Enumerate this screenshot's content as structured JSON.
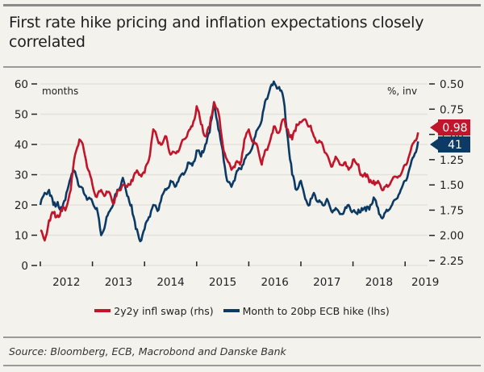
{
  "title": "First rate hike pricing and inflation expectations closely correlated",
  "source": "Source: Bloomberg, ECB, Macrobond and Danske Bank",
  "colors": {
    "red": "#c0152a",
    "blue": "#0c3a64",
    "grid": "#e4e1da",
    "axis": "#222222"
  },
  "chart_data": {
    "type": "line",
    "title": "First rate hike pricing and inflation expectations closely correlated",
    "xlabel": "",
    "left_axis": {
      "label": "months",
      "range": [
        0,
        60
      ],
      "ticks": [
        "0",
        "10",
        "20",
        "30",
        "40",
        "50",
        "60"
      ],
      "tick_values": [
        0,
        10,
        20,
        30,
        40,
        50,
        60
      ]
    },
    "right_axis": {
      "label": "%, inv",
      "inverted": true,
      "range": [
        0.5,
        2.25
      ],
      "ticks": [
        "0.50",
        "0.75",
        "1.00",
        "1.25",
        "1.50",
        "1.75",
        "2.00",
        "2.25"
      ],
      "tick_values": [
        0.5,
        0.75,
        1.0,
        1.25,
        1.5,
        1.75,
        2.0,
        2.25
      ]
    },
    "x_tick_labels": [
      "2012",
      "2013",
      "2014",
      "2015",
      "2016",
      "2017",
      "2018",
      "2019"
    ],
    "x_range": [
      2012.0,
      2019.45
    ],
    "grid": true,
    "legend_position": "bottom",
    "series": [
      {
        "name": "2y2y infl swap (rhs)",
        "axis": "right",
        "color": "#c0152a",
        "end_label": "0.98",
        "x_start": 2012.0,
        "x_step_months": 1,
        "values": [
          1.95,
          2.05,
          1.85,
          1.78,
          1.8,
          1.75,
          1.72,
          1.55,
          1.2,
          1.05,
          1.15,
          1.35,
          1.5,
          1.62,
          1.55,
          1.6,
          1.58,
          1.68,
          1.55,
          1.5,
          1.52,
          1.45,
          1.38,
          1.4,
          1.38,
          1.25,
          0.95,
          1.05,
          1.1,
          1.02,
          1.2,
          1.18,
          1.15,
          1.05,
          0.98,
          0.92,
          0.72,
          0.9,
          1.02,
          0.92,
          0.68,
          0.78,
          1.1,
          1.25,
          1.35,
          1.28,
          1.3,
          1.05,
          0.95,
          1.08,
          1.12,
          1.3,
          1.15,
          1.05,
          0.92,
          0.98,
          0.85,
          0.95,
          1.05,
          0.9,
          0.88,
          0.85,
          0.92,
          1.02,
          1.08,
          1.1,
          1.2,
          1.32,
          1.22,
          1.3,
          1.28,
          1.35,
          1.25,
          1.3,
          1.4,
          1.42,
          1.45,
          1.5,
          1.48,
          1.55,
          1.52,
          1.45,
          1.42,
          1.4,
          1.3,
          1.2,
          1.08,
          0.98
        ]
      },
      {
        "name": "Month to 20bp ECB hike (lhs)",
        "axis": "left",
        "color": "#0c3a64",
        "end_label": "41",
        "x_start": 2012.0,
        "x_step_months": 1,
        "values": [
          20,
          24,
          25,
          20,
          21,
          18,
          24,
          29,
          31,
          26,
          24,
          22,
          21,
          19,
          10,
          14,
          18,
          22,
          25,
          29,
          23,
          20,
          12,
          8,
          12,
          16,
          20,
          18,
          23,
          25,
          28,
          26,
          29,
          30,
          34,
          33,
          38,
          36,
          40,
          44,
          54,
          45,
          38,
          28,
          26,
          30,
          32,
          35,
          37,
          40,
          45,
          48,
          55,
          59,
          60,
          59,
          55,
          42,
          30,
          25,
          28,
          22,
          20,
          24,
          21,
          20,
          22,
          18,
          19,
          17,
          18,
          20,
          18,
          17,
          19,
          18,
          20,
          22,
          17,
          16,
          18,
          20,
          22,
          25,
          28,
          32,
          36,
          41
        ]
      }
    ]
  },
  "legend": [
    {
      "label": "2y2y infl swap (rhs)",
      "color": "#c0152a"
    },
    {
      "label": "Month to 20bp ECB hike (lhs)",
      "color": "#0c3a64"
    }
  ]
}
